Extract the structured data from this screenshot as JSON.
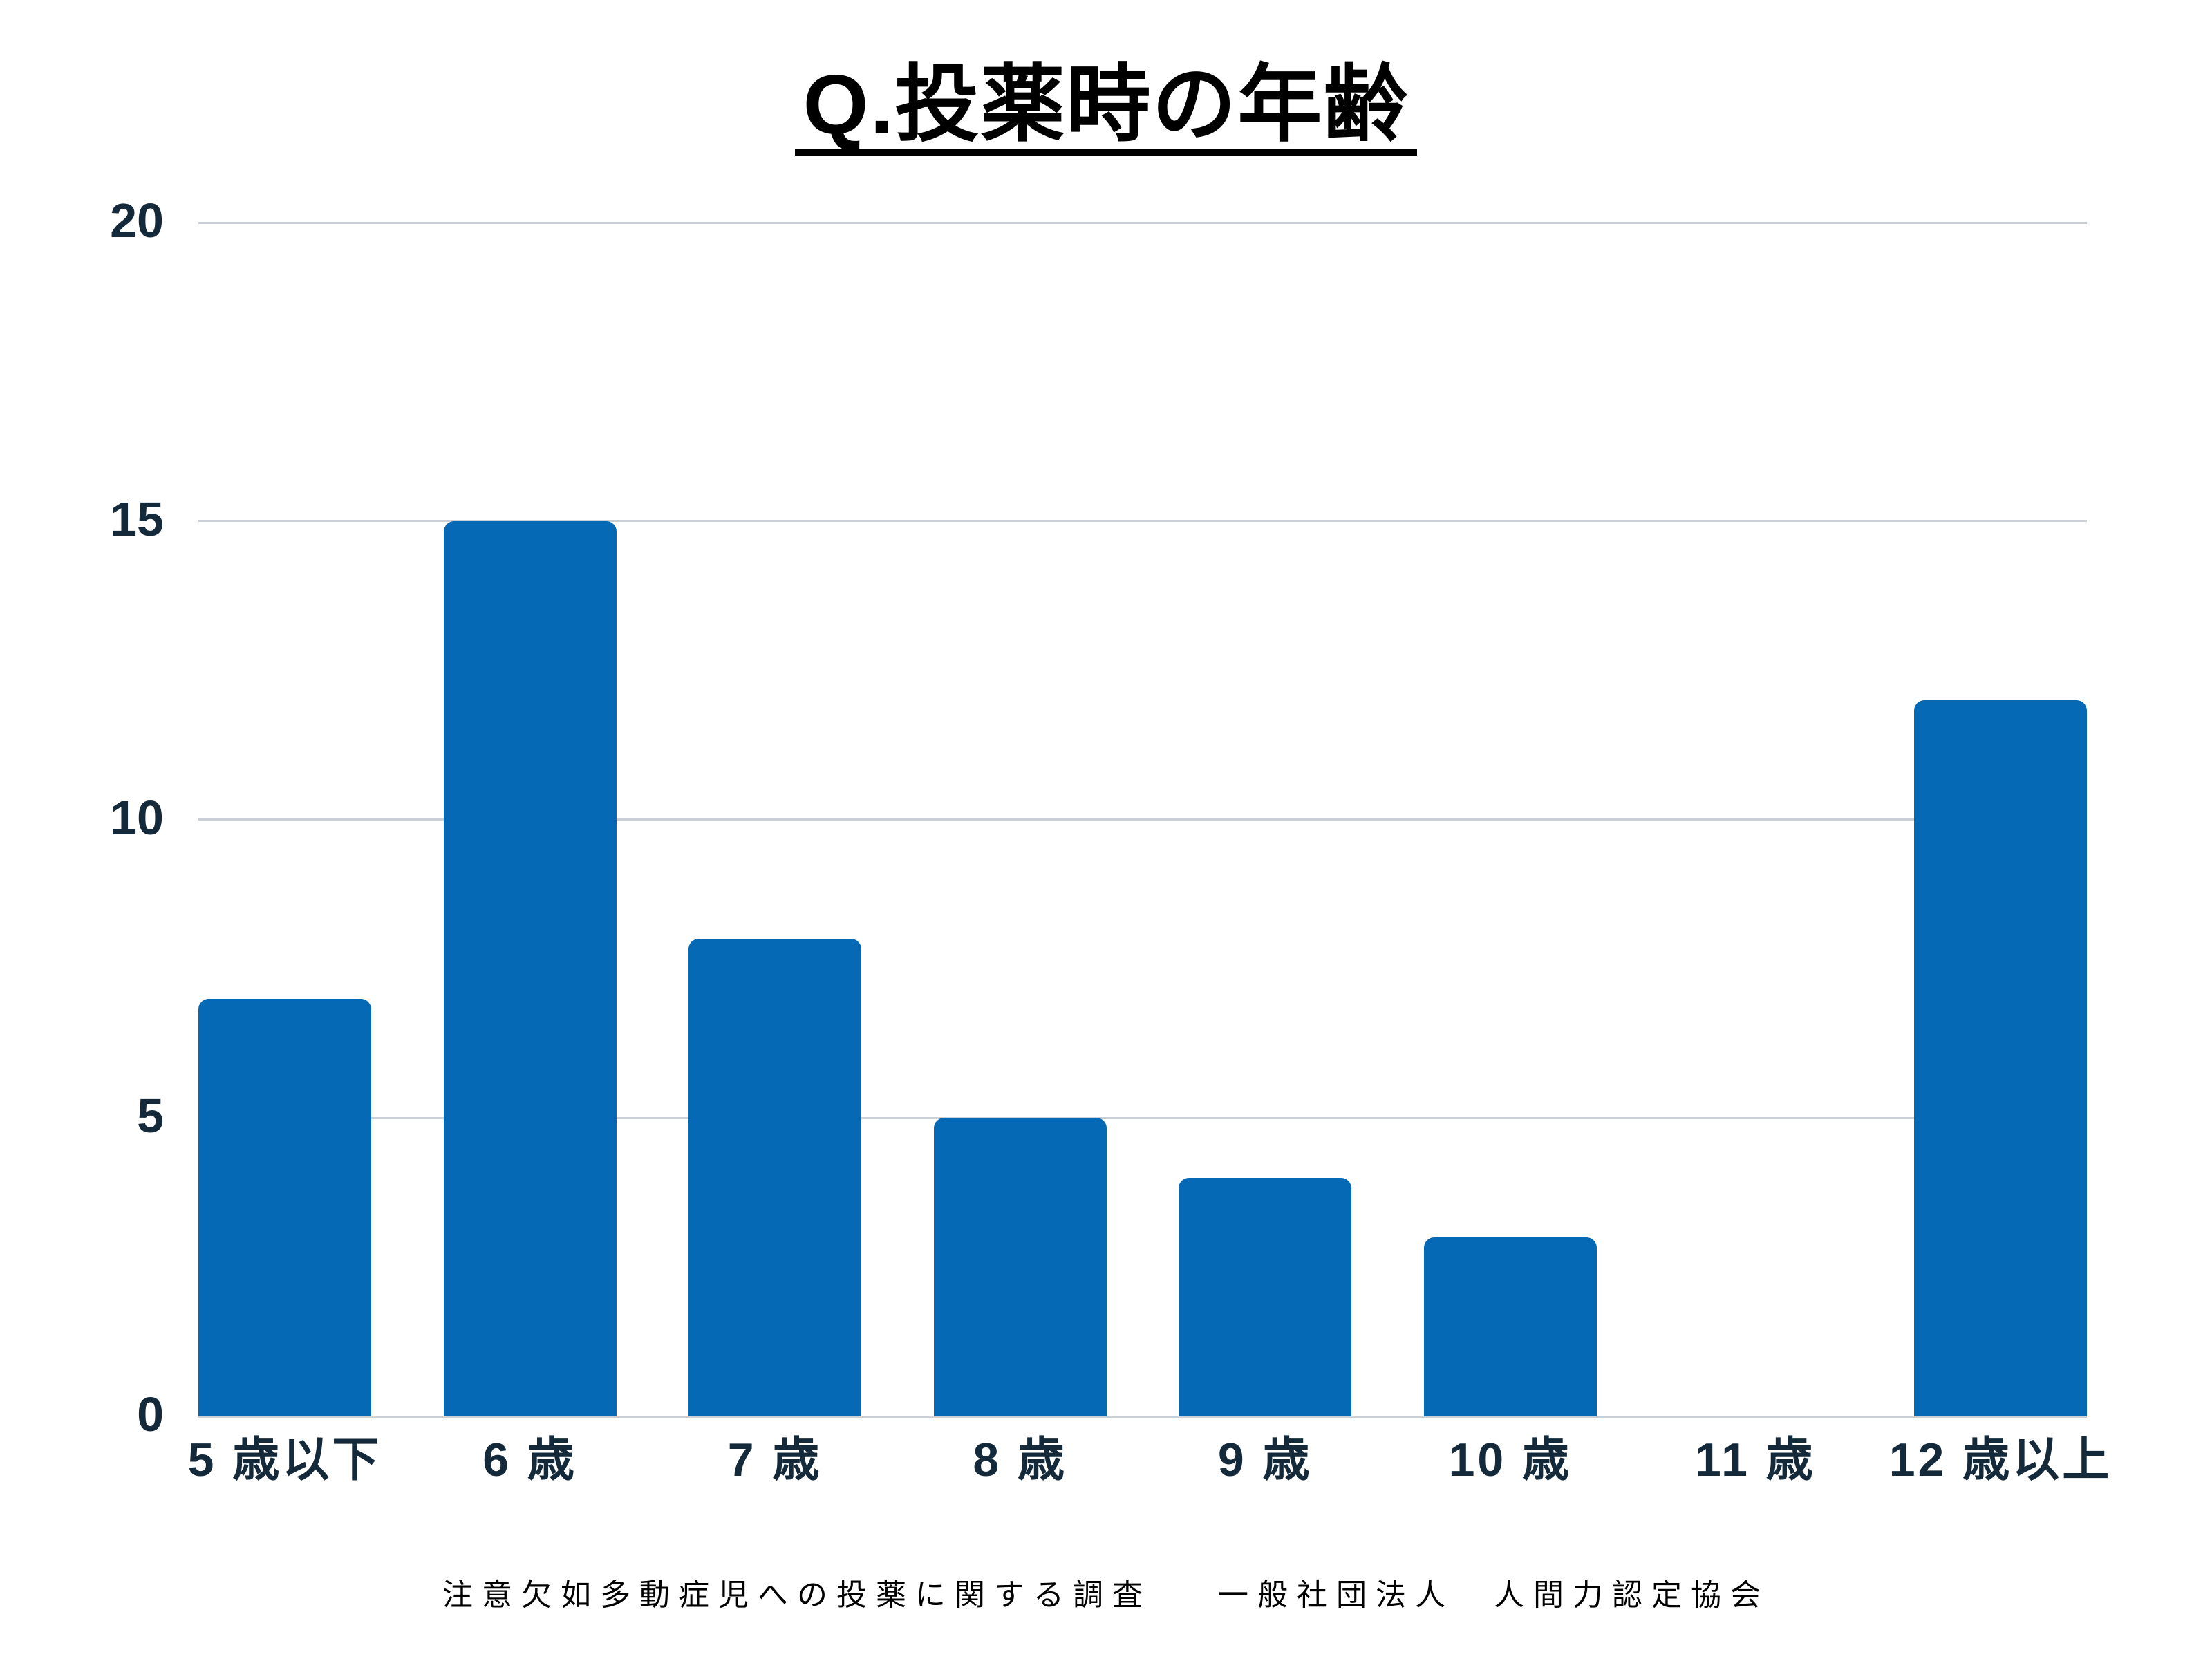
{
  "page": {
    "background": "#ffffff"
  },
  "chart_data": {
    "type": "bar",
    "title": "Q.投薬時の年齢",
    "categories": [
      "5 歳以下",
      "6 歳",
      "7 歳",
      "8 歳",
      "9 歳",
      "10 歳",
      "11 歳",
      "12 歳以上"
    ],
    "values": [
      7,
      15,
      8,
      5,
      4,
      3,
      0,
      12
    ],
    "ylim": [
      0,
      20
    ],
    "y_ticks": [
      0,
      5,
      10,
      15,
      20
    ],
    "xlabel": "",
    "ylabel": "",
    "grid": true,
    "legend": false,
    "bar_color": "#0669b5",
    "gridline_color": "#cbd0d6",
    "axis_label_color": "#14293a",
    "footer": {
      "survey": "注意欠如多動症児への投薬に関する調査",
      "organization": "一般社団法人　人間力認定協会"
    }
  }
}
